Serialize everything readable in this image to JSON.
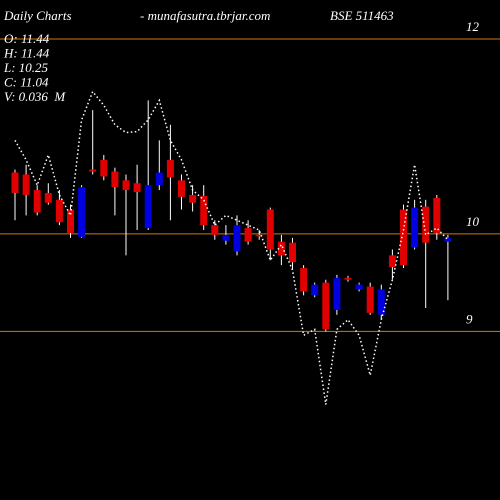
{
  "chart_data": {
    "type": "candlestick",
    "title": "Daily Charts",
    "subtitle": "- munafasutra.tbrjar.com",
    "symbol": "BSE 511463",
    "info": [
      "O: 11.44",
      "H: 11.44",
      "L: 10.25",
      "C: 11.04",
      "V: 0.036  M"
    ],
    "ylim": [
      7.27,
      12.4
    ],
    "yticks": [
      9,
      10,
      12
    ],
    "grid": true,
    "grid_color": "#d2780a",
    "up_color": "#0000e0",
    "down_color": "#e00000",
    "open": [
      10.63,
      10.61,
      10.45,
      10.42,
      10.35,
      10.25,
      9.97,
      10.66,
      10.76,
      10.64,
      10.55,
      10.52,
      10.06,
      10.5,
      10.76,
      10.55,
      10.4,
      10.39,
      10.09,
      9.93,
      9.82,
      10.06,
      9.99,
      10.25,
      9.92,
      9.91,
      9.65,
      9.37,
      9.5,
      9.22,
      9.55,
      9.43,
      9.46,
      9.17,
      9.78,
      10.25,
      9.86,
      10.28,
      10.37,
      9.92
    ],
    "high": [
      10.66,
      10.71,
      10.5,
      10.52,
      10.45,
      10.3,
      10.5,
      11.27,
      10.81,
      10.68,
      10.61,
      10.71,
      11.37,
      10.96,
      11.12,
      10.61,
      10.5,
      10.5,
      10.14,
      10.09,
      10.19,
      10.14,
      10.04,
      10.27,
      9.99,
      9.96,
      9.68,
      9.5,
      9.53,
      9.58,
      9.57,
      9.5,
      9.5,
      9.48,
      9.84,
      10.3,
      10.35,
      10.35,
      10.4,
      9.99
    ],
    "low": [
      10.14,
      10.19,
      10.19,
      10.3,
      10.09,
      9.96,
      9.96,
      10.61,
      10.55,
      10.19,
      9.78,
      10.04,
      10.04,
      10.45,
      10.14,
      10.25,
      10.23,
      10.04,
      9.94,
      9.89,
      9.78,
      9.89,
      9.94,
      9.73,
      9.68,
      9.63,
      9.37,
      9.35,
      9.0,
      9.17,
      9.51,
      9.41,
      9.17,
      9.12,
      9.53,
      9.65,
      9.84,
      9.24,
      9.94,
      9.32
    ],
    "close": [
      10.42,
      10.4,
      10.22,
      10.32,
      10.12,
      10.01,
      10.48,
      10.64,
      10.59,
      10.48,
      10.45,
      10.43,
      10.5,
      10.63,
      10.58,
      10.38,
      10.32,
      10.09,
      9.99,
      9.99,
      10.09,
      9.92,
      9.99,
      9.84,
      9.78,
      9.71,
      9.41,
      9.48,
      9.02,
      9.55,
      9.53,
      9.48,
      9.19,
      9.43,
      9.66,
      9.68,
      10.27,
      9.91,
      10.01,
      9.96
    ],
    "line": {
      "color": "#ffffff",
      "values": [
        10.96,
        10.76,
        10.5,
        10.81,
        10.4,
        10.19,
        11.17,
        11.46,
        11.32,
        11.12,
        11.04,
        11.05,
        11.17,
        11.37,
        10.96,
        10.76,
        10.45,
        10.35,
        10.09,
        10.19,
        10.14,
        10.09,
        10.04,
        9.73,
        9.89,
        9.63,
        8.96,
        9.02,
        8.25,
        9.02,
        9.12,
        8.96,
        8.55,
        9.12,
        9.53,
        10.04,
        10.71,
        9.99,
        10.06,
        9.94
      ]
    }
  }
}
